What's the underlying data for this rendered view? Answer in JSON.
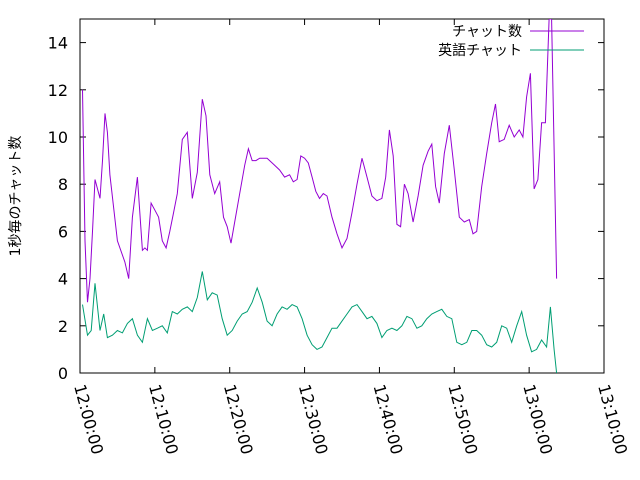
{
  "chart_data": {
    "type": "line",
    "ylabel": "1秒毎のチャット数",
    "xlabel": "",
    "ylim": [
      0,
      15
    ],
    "y_ticks": [
      0,
      2,
      4,
      6,
      8,
      10,
      12,
      14
    ],
    "y_tick_labels": [
      "0",
      "2",
      "4",
      "6",
      "8",
      "10",
      "12",
      "14"
    ],
    "x_range": [
      "12:00:00",
      "13:10:00"
    ],
    "x_ticks": [
      "12:00:00",
      "12:10:00",
      "12:20:00",
      "12:30:00",
      "12:40:00",
      "12:50:00",
      "13:00:00",
      "13:10:00"
    ],
    "legend_position": "top-right",
    "grid": false,
    "series": [
      {
        "name": "チャット数",
        "color": "#9400d3",
        "points": [
          [
            "12:00:20",
            12.0
          ],
          [
            "12:00:40",
            5.6
          ],
          [
            "12:01:00",
            3.0
          ],
          [
            "12:01:20",
            4.0
          ],
          [
            "12:01:40",
            6.0
          ],
          [
            "12:02:00",
            8.2
          ],
          [
            "12:02:20",
            7.8
          ],
          [
            "12:02:40",
            7.4
          ],
          [
            "12:03:00",
            9.0
          ],
          [
            "12:03:20",
            11.0
          ],
          [
            "12:03:40",
            10.2
          ],
          [
            "12:04:00",
            8.4
          ],
          [
            "12:05:00",
            5.6
          ],
          [
            "12:06:00",
            4.7
          ],
          [
            "12:06:30",
            4.0
          ],
          [
            "12:07:00",
            6.6
          ],
          [
            "12:07:40",
            8.3
          ],
          [
            "12:08:20",
            5.2
          ],
          [
            "12:08:40",
            5.3
          ],
          [
            "12:09:00",
            5.2
          ],
          [
            "12:09:30",
            7.2
          ],
          [
            "12:10:00",
            6.9
          ],
          [
            "12:10:30",
            6.6
          ],
          [
            "12:11:00",
            5.6
          ],
          [
            "12:11:30",
            5.3
          ],
          [
            "12:12:00",
            6.0
          ],
          [
            "12:12:30",
            6.8
          ],
          [
            "12:13:00",
            7.6
          ],
          [
            "12:13:40",
            9.9
          ],
          [
            "12:14:20",
            10.2
          ],
          [
            "12:15:00",
            7.4
          ],
          [
            "12:15:40",
            8.5
          ],
          [
            "12:16:20",
            11.6
          ],
          [
            "12:16:50",
            10.9
          ],
          [
            "12:17:20",
            8.4
          ],
          [
            "12:18:00",
            7.6
          ],
          [
            "12:18:40",
            8.1
          ],
          [
            "12:19:10",
            6.6
          ],
          [
            "12:19:40",
            6.2
          ],
          [
            "12:20:10",
            5.5
          ],
          [
            "12:20:40",
            6.4
          ],
          [
            "12:21:20",
            7.6
          ],
          [
            "12:22:00",
            8.8
          ],
          [
            "12:22:30",
            9.5
          ],
          [
            "12:23:00",
            9.0
          ],
          [
            "12:23:30",
            9.0
          ],
          [
            "12:24:00",
            9.1
          ],
          [
            "12:25:00",
            9.1
          ],
          [
            "12:26:00",
            8.8
          ],
          [
            "12:26:40",
            8.6
          ],
          [
            "12:27:20",
            8.3
          ],
          [
            "12:28:00",
            8.4
          ],
          [
            "12:28:30",
            8.1
          ],
          [
            "12:29:00",
            8.2
          ],
          [
            "12:29:30",
            9.2
          ],
          [
            "12:30:00",
            9.1
          ],
          [
            "12:30:30",
            8.9
          ],
          [
            "12:31:00",
            8.3
          ],
          [
            "12:31:30",
            7.7
          ],
          [
            "12:32:00",
            7.4
          ],
          [
            "12:32:30",
            7.6
          ],
          [
            "12:33:00",
            7.5
          ],
          [
            "12:33:40",
            6.6
          ],
          [
            "12:34:20",
            5.9
          ],
          [
            "12:35:00",
            5.3
          ],
          [
            "12:35:40",
            5.7
          ],
          [
            "12:36:20",
            6.8
          ],
          [
            "12:37:00",
            8.0
          ],
          [
            "12:37:40",
            9.1
          ],
          [
            "12:38:20",
            8.3
          ],
          [
            "12:39:00",
            7.5
          ],
          [
            "12:39:40",
            7.3
          ],
          [
            "12:40:20",
            7.4
          ],
          [
            "12:40:50",
            8.3
          ],
          [
            "12:41:20",
            10.3
          ],
          [
            "12:41:50",
            9.2
          ],
          [
            "12:42:20",
            6.3
          ],
          [
            "12:42:50",
            6.2
          ],
          [
            "12:43:20",
            8.0
          ],
          [
            "12:43:50",
            7.6
          ],
          [
            "12:44:30",
            6.4
          ],
          [
            "12:45:10",
            7.5
          ],
          [
            "12:45:50",
            8.8
          ],
          [
            "12:46:30",
            9.4
          ],
          [
            "12:47:00",
            9.7
          ],
          [
            "12:47:30",
            7.9
          ],
          [
            "12:48:00",
            7.2
          ],
          [
            "12:48:40",
            9.3
          ],
          [
            "12:49:20",
            10.5
          ],
          [
            "12:50:00",
            8.6
          ],
          [
            "12:50:40",
            6.6
          ],
          [
            "12:51:20",
            6.4
          ],
          [
            "12:52:00",
            6.5
          ],
          [
            "12:52:30",
            5.9
          ],
          [
            "12:53:00",
            6.0
          ],
          [
            "12:53:40",
            7.9
          ],
          [
            "12:54:20",
            9.3
          ],
          [
            "12:55:00",
            10.6
          ],
          [
            "12:55:30",
            11.4
          ],
          [
            "12:56:00",
            9.8
          ],
          [
            "12:56:40",
            9.9
          ],
          [
            "12:57:20",
            10.5
          ],
          [
            "12:58:00",
            10.0
          ],
          [
            "12:58:40",
            10.3
          ],
          [
            "12:59:10",
            10.0
          ],
          [
            "12:59:40",
            11.7
          ],
          [
            "13:00:10",
            12.7
          ],
          [
            "13:00:40",
            7.8
          ],
          [
            "13:01:10",
            8.2
          ],
          [
            "13:01:40",
            10.6
          ],
          [
            "13:02:10",
            10.6
          ],
          [
            "13:02:40",
            15.0
          ],
          [
            "13:03:00",
            15.0
          ],
          [
            "13:03:40",
            4.0
          ]
        ]
      },
      {
        "name": "英語チャット",
        "color": "#009e73",
        "points": [
          [
            "12:00:20",
            2.9
          ],
          [
            "12:01:00",
            1.6
          ],
          [
            "12:01:30",
            1.8
          ],
          [
            "12:02:00",
            3.8
          ],
          [
            "12:02:40",
            1.8
          ],
          [
            "12:03:10",
            2.5
          ],
          [
            "12:03:40",
            1.5
          ],
          [
            "12:04:20",
            1.6
          ],
          [
            "12:05:00",
            1.8
          ],
          [
            "12:05:40",
            1.7
          ],
          [
            "12:06:20",
            2.1
          ],
          [
            "12:07:00",
            2.3
          ],
          [
            "12:07:40",
            1.6
          ],
          [
            "12:08:20",
            1.3
          ],
          [
            "12:09:00",
            2.3
          ],
          [
            "12:09:40",
            1.8
          ],
          [
            "12:10:20",
            1.9
          ],
          [
            "12:11:00",
            2.0
          ],
          [
            "12:11:40",
            1.7
          ],
          [
            "12:12:20",
            2.6
          ],
          [
            "12:13:00",
            2.5
          ],
          [
            "12:13:40",
            2.7
          ],
          [
            "12:14:20",
            2.8
          ],
          [
            "12:15:00",
            2.6
          ],
          [
            "12:15:40",
            3.2
          ],
          [
            "12:16:20",
            4.3
          ],
          [
            "12:17:00",
            3.1
          ],
          [
            "12:17:40",
            3.4
          ],
          [
            "12:18:20",
            3.3
          ],
          [
            "12:19:00",
            2.3
          ],
          [
            "12:19:40",
            1.6
          ],
          [
            "12:20:20",
            1.8
          ],
          [
            "12:21:00",
            2.2
          ],
          [
            "12:21:40",
            2.5
          ],
          [
            "12:22:20",
            2.6
          ],
          [
            "12:23:00",
            3.0
          ],
          [
            "12:23:40",
            3.6
          ],
          [
            "12:24:20",
            3.0
          ],
          [
            "12:25:00",
            2.2
          ],
          [
            "12:25:40",
            2.0
          ],
          [
            "12:26:20",
            2.5
          ],
          [
            "12:27:00",
            2.8
          ],
          [
            "12:27:40",
            2.7
          ],
          [
            "12:28:20",
            2.9
          ],
          [
            "12:29:00",
            2.8
          ],
          [
            "12:29:40",
            2.3
          ],
          [
            "12:30:20",
            1.6
          ],
          [
            "12:31:00",
            1.2
          ],
          [
            "12:31:40",
            1.0
          ],
          [
            "12:32:20",
            1.1
          ],
          [
            "12:33:00",
            1.5
          ],
          [
            "12:33:40",
            1.9
          ],
          [
            "12:34:20",
            1.9
          ],
          [
            "12:35:00",
            2.2
          ],
          [
            "12:35:40",
            2.5
          ],
          [
            "12:36:20",
            2.8
          ],
          [
            "12:37:00",
            2.9
          ],
          [
            "12:37:40",
            2.6
          ],
          [
            "12:38:20",
            2.3
          ],
          [
            "12:39:00",
            2.4
          ],
          [
            "12:39:40",
            2.1
          ],
          [
            "12:40:20",
            1.5
          ],
          [
            "12:41:00",
            1.8
          ],
          [
            "12:41:40",
            1.9
          ],
          [
            "12:42:20",
            1.8
          ],
          [
            "12:43:00",
            2.0
          ],
          [
            "12:43:40",
            2.4
          ],
          [
            "12:44:20",
            2.3
          ],
          [
            "12:45:00",
            1.9
          ],
          [
            "12:45:40",
            2.0
          ],
          [
            "12:46:20",
            2.3
          ],
          [
            "12:47:00",
            2.5
          ],
          [
            "12:47:40",
            2.6
          ],
          [
            "12:48:20",
            2.7
          ],
          [
            "12:49:00",
            2.4
          ],
          [
            "12:49:40",
            2.3
          ],
          [
            "12:50:20",
            1.3
          ],
          [
            "12:51:00",
            1.2
          ],
          [
            "12:51:40",
            1.3
          ],
          [
            "12:52:20",
            1.8
          ],
          [
            "12:53:00",
            1.8
          ],
          [
            "12:53:40",
            1.6
          ],
          [
            "12:54:20",
            1.2
          ],
          [
            "12:55:00",
            1.1
          ],
          [
            "12:55:40",
            1.3
          ],
          [
            "12:56:20",
            2.0
          ],
          [
            "12:57:00",
            1.9
          ],
          [
            "12:57:40",
            1.3
          ],
          [
            "12:58:20",
            2.0
          ],
          [
            "12:59:00",
            2.6
          ],
          [
            "12:59:40",
            1.6
          ],
          [
            "13:00:20",
            0.9
          ],
          [
            "13:01:00",
            1.0
          ],
          [
            "13:01:40",
            1.4
          ],
          [
            "13:02:20",
            1.1
          ],
          [
            "13:02:50",
            2.8
          ],
          [
            "13:03:20",
            1.0
          ],
          [
            "13:03:40",
            0.0
          ]
        ]
      }
    ]
  }
}
